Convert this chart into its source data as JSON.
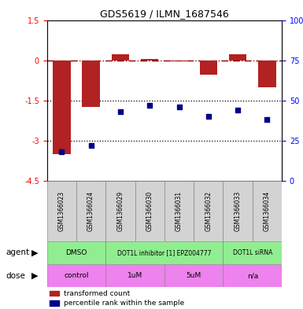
{
  "title": "GDS5619 / ILMN_1687546",
  "samples": [
    "GSM1366023",
    "GSM1366024",
    "GSM1366029",
    "GSM1366030",
    "GSM1366031",
    "GSM1366032",
    "GSM1366033",
    "GSM1366034"
  ],
  "bar_values": [
    -3.5,
    -1.75,
    0.22,
    0.05,
    -0.05,
    -0.55,
    0.22,
    -1.0
  ],
  "dot_percentile": [
    18,
    22,
    43,
    47,
    46,
    40,
    44,
    38
  ],
  "ylim_left": [
    -4.5,
    1.5
  ],
  "ylim_right": [
    0,
    100
  ],
  "yticks_left": [
    1.5,
    0,
    -1.5,
    -3,
    -4.5
  ],
  "yticks_right": [
    100,
    75,
    50,
    25,
    0
  ],
  "hline_red": 0,
  "hline_black1": -1.5,
  "hline_black2": -3.0,
  "bar_color": "#b22222",
  "dot_color": "#00008b",
  "agent_groups": [
    {
      "label": "DMSO",
      "start": 0,
      "end": 2,
      "color": "#90ee90"
    },
    {
      "label": "DOT1L inhibitor [1] EPZ004777",
      "start": 2,
      "end": 6,
      "color": "#90ee90"
    },
    {
      "label": "DOT1L siRNA",
      "start": 6,
      "end": 8,
      "color": "#90ee90"
    }
  ],
  "dose_groups": [
    {
      "label": "control",
      "start": 0,
      "end": 2,
      "color": "#ee82ee"
    },
    {
      "label": "1uM",
      "start": 2,
      "end": 4,
      "color": "#ee82ee"
    },
    {
      "label": "5uM",
      "start": 4,
      "end": 6,
      "color": "#ee82ee"
    },
    {
      "label": "n/a",
      "start": 6,
      "end": 8,
      "color": "#ee82ee"
    }
  ],
  "legend_items": [
    {
      "label": "transformed count",
      "color": "#b22222"
    },
    {
      "label": "percentile rank within the sample",
      "color": "#00008b"
    }
  ],
  "agent_label": "agent",
  "dose_label": "dose",
  "sample_bg": "#d3d3d3"
}
